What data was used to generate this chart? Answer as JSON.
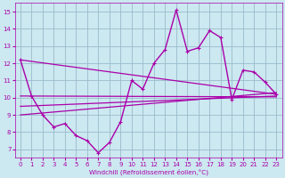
{
  "bg_color": "#cce8f0",
  "line_color": "#aa00aa",
  "grid_color": "#99bbcc",
  "ylim": [
    6.5,
    15.5
  ],
  "xlim": [
    -0.5,
    23.5
  ],
  "yticks": [
    7,
    8,
    9,
    10,
    11,
    12,
    13,
    14,
    15
  ],
  "xticks": [
    0,
    1,
    2,
    3,
    4,
    5,
    6,
    7,
    8,
    9,
    10,
    11,
    12,
    13,
    14,
    15,
    16,
    17,
    18,
    19,
    20,
    21,
    22,
    23
  ],
  "xlabel": "Windchill (Refroidissement éolien,°C)",
  "main_x": [
    0,
    1,
    2,
    3,
    4,
    5,
    6,
    7,
    8,
    9,
    10,
    11,
    12,
    13,
    14,
    15,
    16,
    17,
    18,
    19,
    20,
    21,
    22,
    23
  ],
  "main_y": [
    12.2,
    10.1,
    9.0,
    8.3,
    8.5,
    7.8,
    7.5,
    6.8,
    7.4,
    8.6,
    11.0,
    10.5,
    12.0,
    12.8,
    15.1,
    12.7,
    12.9,
    13.9,
    13.5,
    9.9,
    11.6,
    11.5,
    10.9,
    10.2
  ],
  "trend1_x": [
    0,
    23
  ],
  "trend1_y": [
    12.2,
    10.2
  ],
  "trend2_x": [
    0,
    23
  ],
  "trend2_y": [
    9.5,
    10.1
  ],
  "trend3_x": [
    0,
    23
  ],
  "trend3_y": [
    10.1,
    10.05
  ],
  "trend4_x": [
    0,
    23
  ],
  "trend4_y": [
    9.0,
    10.3
  ]
}
